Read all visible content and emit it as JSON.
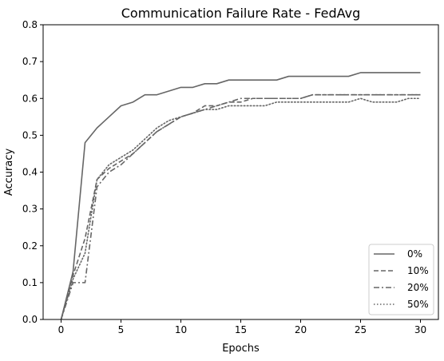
{
  "chart_data": {
    "type": "line",
    "title": "Communication Failure Rate - FedAvg",
    "xlabel": "Epochs",
    "ylabel": "Accuracy",
    "xlim": [
      -1.5,
      31.5
    ],
    "ylim": [
      0,
      0.8
    ],
    "xticks": [
      0,
      5,
      10,
      15,
      20,
      25,
      30
    ],
    "yticks": [
      0.0,
      0.1,
      0.2,
      0.3,
      0.4,
      0.5,
      0.6,
      0.7,
      0.8
    ],
    "grid": false,
    "legend_position": "lower-right",
    "x": [
      0,
      1,
      2,
      3,
      4,
      5,
      6,
      7,
      8,
      9,
      10,
      11,
      12,
      13,
      14,
      15,
      16,
      17,
      18,
      19,
      20,
      21,
      22,
      23,
      24,
      25,
      26,
      27,
      28,
      29,
      30
    ],
    "series": [
      {
        "name": "0%",
        "style": "solid",
        "color": "#666666",
        "values": [
          0.0,
          0.13,
          0.48,
          0.52,
          0.55,
          0.58,
          0.59,
          0.61,
          0.61,
          0.62,
          0.63,
          0.63,
          0.64,
          0.64,
          0.65,
          0.65,
          0.65,
          0.65,
          0.65,
          0.66,
          0.66,
          0.66,
          0.66,
          0.66,
          0.66,
          0.67,
          0.67,
          0.67,
          0.67,
          0.67,
          0.67
        ]
      },
      {
        "name": "10%",
        "style": "dashed",
        "color": "#666666",
        "values": [
          0.0,
          0.12,
          0.22,
          0.38,
          0.41,
          0.43,
          0.45,
          0.48,
          0.51,
          0.53,
          0.55,
          0.56,
          0.58,
          0.58,
          0.59,
          0.59,
          0.6,
          0.6,
          0.6,
          0.6,
          0.6,
          0.61,
          0.61,
          0.61,
          0.61,
          0.61,
          0.61,
          0.61,
          0.61,
          0.61,
          0.61
        ]
      },
      {
        "name": "20%",
        "style": "dashdot",
        "color": "#666666",
        "values": [
          0.0,
          0.1,
          0.1,
          0.36,
          0.4,
          0.42,
          0.45,
          0.48,
          0.51,
          0.53,
          0.55,
          0.56,
          0.57,
          0.58,
          0.59,
          0.6,
          0.6,
          0.6,
          0.6,
          0.6,
          0.6,
          0.61,
          0.61,
          0.61,
          0.61,
          0.61,
          0.61,
          0.61,
          0.61,
          0.61,
          0.61
        ]
      },
      {
        "name": "50%",
        "style": "dotted",
        "color": "#666666",
        "values": [
          0.0,
          0.11,
          0.18,
          0.38,
          0.42,
          0.44,
          0.46,
          0.49,
          0.52,
          0.54,
          0.55,
          0.56,
          0.57,
          0.57,
          0.58,
          0.58,
          0.58,
          0.58,
          0.59,
          0.59,
          0.59,
          0.59,
          0.59,
          0.59,
          0.59,
          0.6,
          0.59,
          0.59,
          0.59,
          0.6,
          0.6
        ]
      }
    ]
  }
}
